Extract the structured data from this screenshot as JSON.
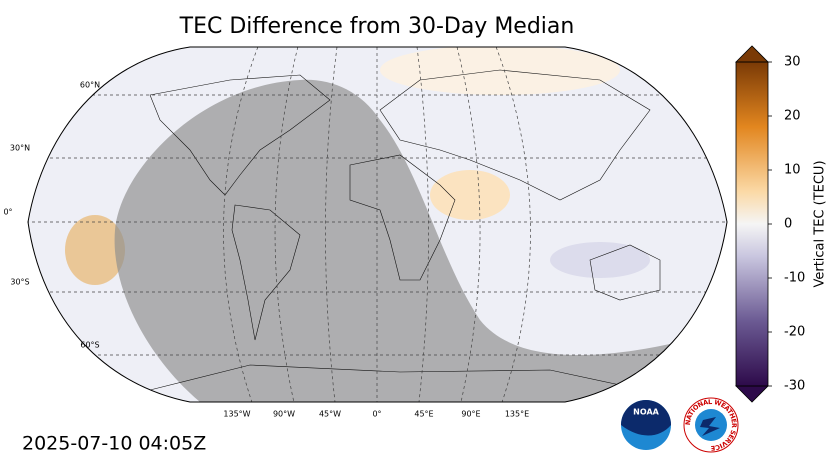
{
  "title": "TEC Difference from 30-Day Median",
  "map": {
    "lat_labels": [
      "60°N",
      "30°N",
      "0°",
      "30°S",
      "60°S"
    ],
    "lon_labels": [
      "135°W",
      "90°W",
      "45°W",
      "0°",
      "45°E",
      "90°E",
      "135°E"
    ]
  },
  "colorbar": {
    "label": "Vertical TEC (TECU)",
    "range": [
      -30,
      30
    ],
    "ticks": [
      -30,
      -20,
      -10,
      0,
      10,
      20,
      30
    ]
  },
  "timestamp": "2025-07-10 04:05Z",
  "logos": {
    "noaa": "NOAA",
    "nws": "NATIONAL WEATHER SERVICE"
  }
}
